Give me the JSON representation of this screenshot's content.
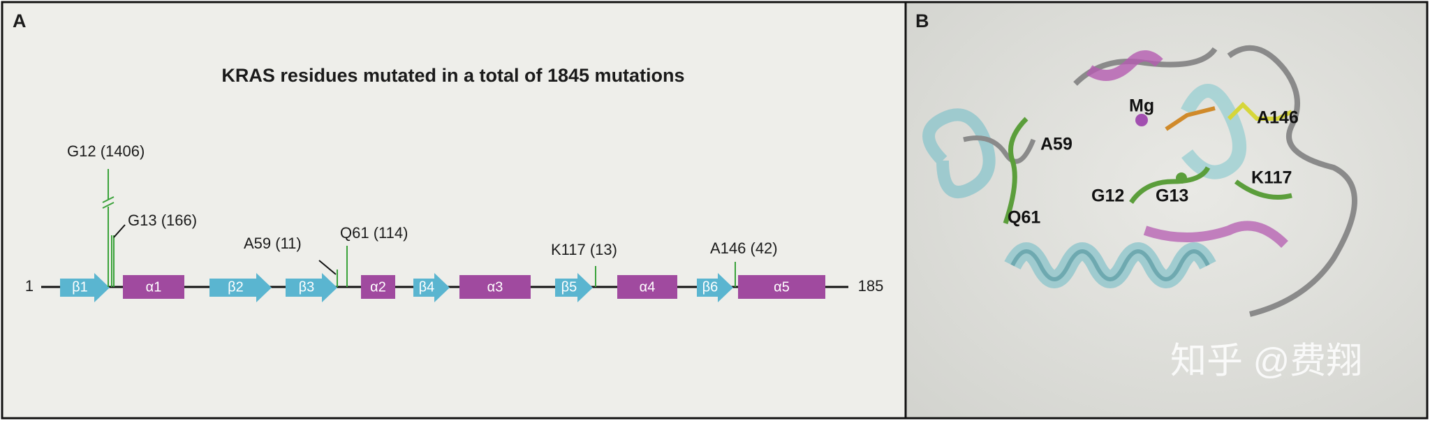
{
  "panel_a": {
    "label": "A",
    "title": "KRAS residues mutated in a total of 1845 mutations",
    "start": 1,
    "end": 185,
    "domains": [
      "β1",
      "α1",
      "β2",
      "β3",
      "α2",
      "β4",
      "α3",
      "β5",
      "α4",
      "β6",
      "α5"
    ],
    "mutations": [
      "G12 (1406)",
      "G13 (166)",
      "A59 (11)",
      "Q61 (114)",
      "K117 (13)",
      "A146 (42)"
    ]
  },
  "panel_b": {
    "label": "B",
    "residues": [
      "Mg",
      "A146",
      "A59",
      "K117",
      "G12",
      "G13",
      "Q61"
    ],
    "watermark": "知乎 @费翔"
  }
}
